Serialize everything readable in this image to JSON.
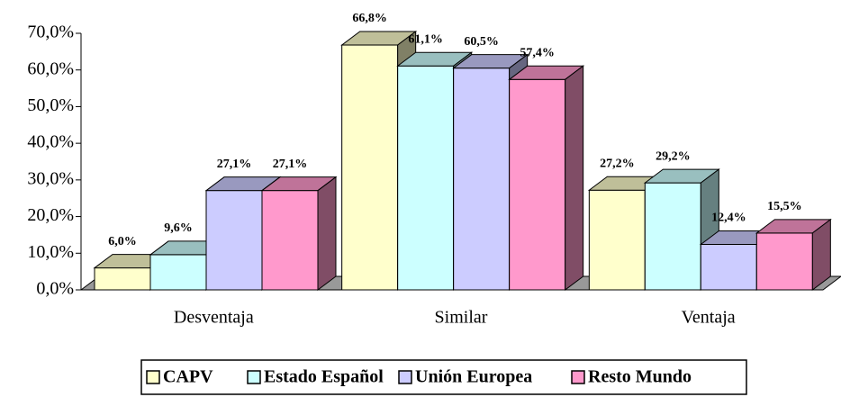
{
  "chart_data": {
    "type": "bar3d",
    "categories": [
      "Desventaja",
      "Similar",
      "Ventaja"
    ],
    "series": [
      {
        "name": "CAPV",
        "color": "#ffffcc",
        "values": [
          6.0,
          66.8,
          27.2
        ],
        "value_labels": [
          "6,0%",
          "66,8%",
          "27,2%"
        ]
      },
      {
        "name": "Estado Español",
        "color": "#ccffff",
        "values": [
          9.6,
          61.1,
          29.2
        ],
        "value_labels": [
          "9,6%",
          "61,1%",
          "29,2%"
        ]
      },
      {
        "name": "Unión Europea",
        "color": "#ccccff",
        "values": [
          27.1,
          60.5,
          12.4
        ],
        "value_labels": [
          "27,1%",
          "60,5%",
          "12,4%"
        ]
      },
      {
        "name": "Resto Mundo",
        "color": "#ff99cc",
        "values": [
          27.1,
          57.4,
          15.5
        ],
        "value_labels": [
          "27,1%",
          "57,4%",
          "15,5%"
        ]
      }
    ],
    "ylim": [
      0,
      70
    ],
    "yticks": [
      {
        "value": 0,
        "label": "0,0%"
      },
      {
        "value": 10,
        "label": "10,0%"
      },
      {
        "value": 20,
        "label": "20,0%"
      },
      {
        "value": 30,
        "label": "30,0%"
      },
      {
        "value": 40,
        "label": "40,0%"
      },
      {
        "value": 50,
        "label": "50,0%"
      },
      {
        "value": 60,
        "label": "60,0%"
      },
      {
        "value": 70,
        "label": "70,0%"
      }
    ],
    "legend": "bottom"
  }
}
